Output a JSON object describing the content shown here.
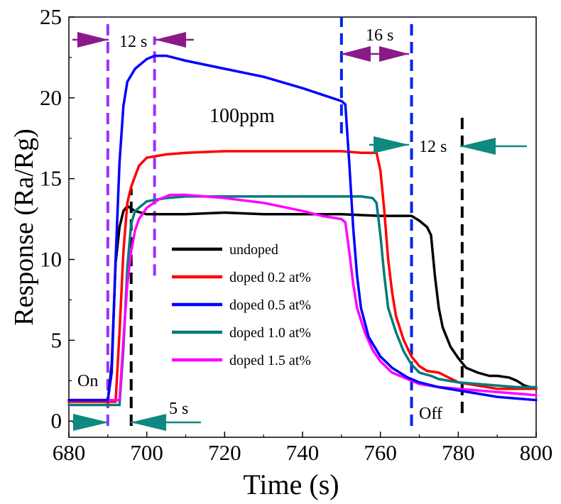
{
  "chart_data": {
    "type": "line",
    "title": "",
    "xlabel": "Time (s)",
    "ylabel": "Response (Ra/Rg)",
    "xlim": [
      680,
      800
    ],
    "ylim": [
      -1,
      25
    ],
    "xticks": [
      680,
      700,
      720,
      740,
      760,
      780,
      800
    ],
    "yticks": [
      0,
      5,
      10,
      15,
      20,
      25
    ],
    "grid": false,
    "legend_position": "center-left",
    "series": [
      {
        "name": "undoped",
        "color": "#000000",
        "points": [
          [
            680,
            1.2
          ],
          [
            690,
            1.2
          ],
          [
            691,
            3.5
          ],
          [
            692,
            9.8
          ],
          [
            693,
            12.0
          ],
          [
            694,
            13.0
          ],
          [
            695,
            13.3
          ],
          [
            697,
            13.0
          ],
          [
            700,
            12.8
          ],
          [
            710,
            12.8
          ],
          [
            720,
            12.9
          ],
          [
            730,
            12.8
          ],
          [
            740,
            12.8
          ],
          [
            750,
            12.8
          ],
          [
            760,
            12.7
          ],
          [
            768,
            12.7
          ],
          [
            770,
            12.4
          ],
          [
            772,
            12.0
          ],
          [
            773,
            11.5
          ],
          [
            774,
            9.0
          ],
          [
            775,
            7.0
          ],
          [
            776,
            5.8
          ],
          [
            778,
            4.6
          ],
          [
            780,
            3.9
          ],
          [
            782,
            3.3
          ],
          [
            785,
            3.0
          ],
          [
            788,
            2.8
          ],
          [
            790,
            2.8
          ],
          [
            793,
            2.7
          ],
          [
            795,
            2.5
          ],
          [
            797,
            2.2
          ],
          [
            800,
            2.0
          ]
        ]
      },
      {
        "name": "doped 0.2 at%",
        "color": "#ff0000",
        "points": [
          [
            680,
            1.2
          ],
          [
            692,
            1.2
          ],
          [
            693,
            5.5
          ],
          [
            694,
            10.5
          ],
          [
            695,
            13.5
          ],
          [
            696,
            14.5
          ],
          [
            698,
            15.8
          ],
          [
            700,
            16.3
          ],
          [
            705,
            16.5
          ],
          [
            710,
            16.6
          ],
          [
            720,
            16.7
          ],
          [
            730,
            16.7
          ],
          [
            740,
            16.7
          ],
          [
            750,
            16.7
          ],
          [
            755,
            16.6
          ],
          [
            759,
            16.6
          ],
          [
            760,
            15.5
          ],
          [
            761,
            13.0
          ],
          [
            762,
            10.0
          ],
          [
            763,
            8.0
          ],
          [
            764,
            6.5
          ],
          [
            766,
            5.0
          ],
          [
            768,
            4.0
          ],
          [
            770,
            3.4
          ],
          [
            772,
            3.1
          ],
          [
            775,
            3.0
          ],
          [
            780,
            2.4
          ],
          [
            785,
            2.2
          ],
          [
            790,
            2.0
          ],
          [
            795,
            2.0
          ],
          [
            800,
            2.0
          ]
        ]
      },
      {
        "name": "doped 0.5 at%",
        "color": "#0000ff",
        "points": [
          [
            680,
            1.3
          ],
          [
            690,
            1.3
          ],
          [
            691,
            3.0
          ],
          [
            692,
            10.0
          ],
          [
            693,
            16.0
          ],
          [
            694,
            19.5
          ],
          [
            695,
            21.0
          ],
          [
            697,
            21.8
          ],
          [
            700,
            22.4
          ],
          [
            702,
            22.6
          ],
          [
            705,
            22.6
          ],
          [
            710,
            22.3
          ],
          [
            720,
            21.8
          ],
          [
            730,
            21.3
          ],
          [
            740,
            20.6
          ],
          [
            745,
            20.2
          ],
          [
            750,
            19.8
          ],
          [
            751,
            19.6
          ],
          [
            752,
            16.0
          ],
          [
            753,
            12.0
          ],
          [
            754,
            9.0
          ],
          [
            755,
            7.0
          ],
          [
            757,
            5.2
          ],
          [
            760,
            4.0
          ],
          [
            763,
            3.3
          ],
          [
            767,
            2.7
          ],
          [
            770,
            2.4
          ],
          [
            775,
            2.1
          ],
          [
            780,
            1.9
          ],
          [
            785,
            1.7
          ],
          [
            790,
            1.5
          ],
          [
            795,
            1.4
          ],
          [
            800,
            1.3
          ]
        ]
      },
      {
        "name": "doped 1.0 at%",
        "color": "#007b7b",
        "points": [
          [
            680,
            1.0
          ],
          [
            693,
            1.0
          ],
          [
            694,
            4.5
          ],
          [
            695,
            9.5
          ],
          [
            696,
            12.2
          ],
          [
            697,
            13.0
          ],
          [
            700,
            13.6
          ],
          [
            705,
            13.8
          ],
          [
            710,
            13.9
          ],
          [
            720,
            13.9
          ],
          [
            730,
            13.9
          ],
          [
            740,
            13.9
          ],
          [
            750,
            13.9
          ],
          [
            755,
            13.9
          ],
          [
            758,
            13.8
          ],
          [
            759,
            13.5
          ],
          [
            760,
            11.5
          ],
          [
            761,
            9.0
          ],
          [
            762,
            7.0
          ],
          [
            764,
            5.5
          ],
          [
            766,
            4.3
          ],
          [
            768,
            3.5
          ],
          [
            770,
            3.0
          ],
          [
            773,
            2.8
          ],
          [
            775,
            2.6
          ],
          [
            780,
            2.4
          ],
          [
            785,
            2.3
          ],
          [
            790,
            2.2
          ],
          [
            795,
            2.1
          ],
          [
            800,
            2.1
          ]
        ]
      },
      {
        "name": "doped 1.5 at%",
        "color": "#ff00ff",
        "points": [
          [
            680,
            1.3
          ],
          [
            693,
            1.3
          ],
          [
            694,
            5.0
          ],
          [
            695,
            8.5
          ],
          [
            696,
            10.5
          ],
          [
            697,
            11.8
          ],
          [
            698,
            12.5
          ],
          [
            700,
            13.2
          ],
          [
            703,
            13.7
          ],
          [
            706,
            14.0
          ],
          [
            710,
            14.0
          ],
          [
            720,
            13.8
          ],
          [
            730,
            13.5
          ],
          [
            740,
            13.0
          ],
          [
            745,
            12.7
          ],
          [
            750,
            12.5
          ],
          [
            751,
            12.3
          ],
          [
            752,
            10.5
          ],
          [
            753,
            8.5
          ],
          [
            754,
            7.0
          ],
          [
            756,
            5.5
          ],
          [
            758,
            4.4
          ],
          [
            760,
            3.7
          ],
          [
            763,
            3.0
          ],
          [
            767,
            2.6
          ],
          [
            770,
            2.3
          ],
          [
            775,
            2.1
          ],
          [
            780,
            2.0
          ],
          [
            785,
            1.9
          ],
          [
            790,
            1.8
          ],
          [
            795,
            1.7
          ],
          [
            800,
            1.6
          ]
        ]
      }
    ],
    "vlines": [
      {
        "x": 690,
        "color": "#9933ff",
        "y0": -0.3,
        "y1": 25
      },
      {
        "x": 696,
        "color": "#000000",
        "y0": -0.3,
        "y1": 14.4
      },
      {
        "x": 702,
        "color": "#9933ff",
        "y0": 9.0,
        "y1": 23.8
      },
      {
        "x": 750,
        "color": "#0022ee",
        "y0": 17.8,
        "y1": 25
      },
      {
        "x": 768,
        "color": "#0022ee",
        "y0": -0.3,
        "y1": 25
      },
      {
        "x": 781,
        "color": "#000000",
        "y0": 0.5,
        "y1": 18.8
      }
    ],
    "annotations": {
      "top_left": "12 s",
      "top_right": "16 s",
      "right": "12 s",
      "bottom": "5 s",
      "concentration": "100ppm",
      "on": "On",
      "off": "Off"
    },
    "colors": {
      "purple_arrow": "#8a1a8a",
      "teal_arrow": "#0e8a80",
      "bottom_label": "#1a1a9a"
    }
  }
}
